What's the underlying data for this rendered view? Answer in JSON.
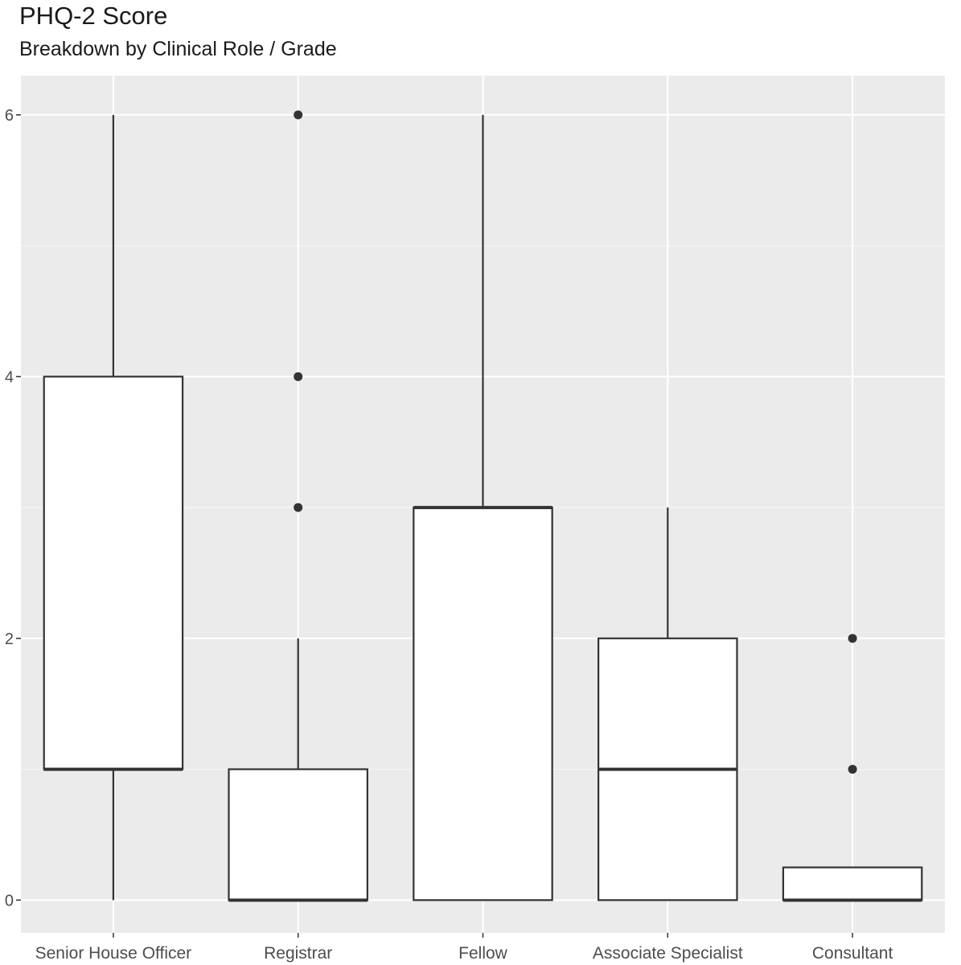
{
  "chart_data": {
    "type": "boxplot",
    "title": "PHQ-2 Score",
    "subtitle": "Breakdown by Clinical Role / Grade",
    "xlabel": "",
    "ylabel": "",
    "ylim": [
      -0.25,
      6.3
    ],
    "y_ticks": [
      0,
      2,
      4,
      6
    ],
    "y_tick_labels": [
      "0",
      "2",
      "4",
      "6"
    ],
    "grid": true,
    "categories": [
      "Senior House Officer",
      "Registrar",
      "Fellow",
      "Associate Specialist",
      "Consultant"
    ],
    "boxes": [
      {
        "category": "Senior House Officer",
        "whisker_low": 0,
        "q1": 1,
        "median": 1,
        "q3": 4,
        "whisker_high": 6,
        "outliers": []
      },
      {
        "category": "Registrar",
        "whisker_low": 0,
        "q1": 0,
        "median": 0,
        "q3": 1,
        "whisker_high": 2,
        "outliers": [
          3,
          4,
          6
        ]
      },
      {
        "category": "Fellow",
        "whisker_low": 0,
        "q1": 0,
        "median": 3,
        "q3": 3,
        "whisker_high": 6,
        "outliers": []
      },
      {
        "category": "Associate Specialist",
        "whisker_low": 0,
        "q1": 0,
        "median": 1,
        "q3": 2,
        "whisker_high": 3,
        "outliers": []
      },
      {
        "category": "Consultant",
        "whisker_low": 0,
        "q1": 0,
        "median": 0,
        "q3": 0.25,
        "whisker_high": 0.25,
        "outliers": [
          1,
          2
        ]
      }
    ],
    "colors": {
      "panel_bg": "#ebebeb",
      "grid_major": "#ffffff",
      "grid_minor": "#f5f5f5",
      "box_fill": "#ffffff",
      "box_stroke": "#333333",
      "outlier": "#333333"
    }
  }
}
